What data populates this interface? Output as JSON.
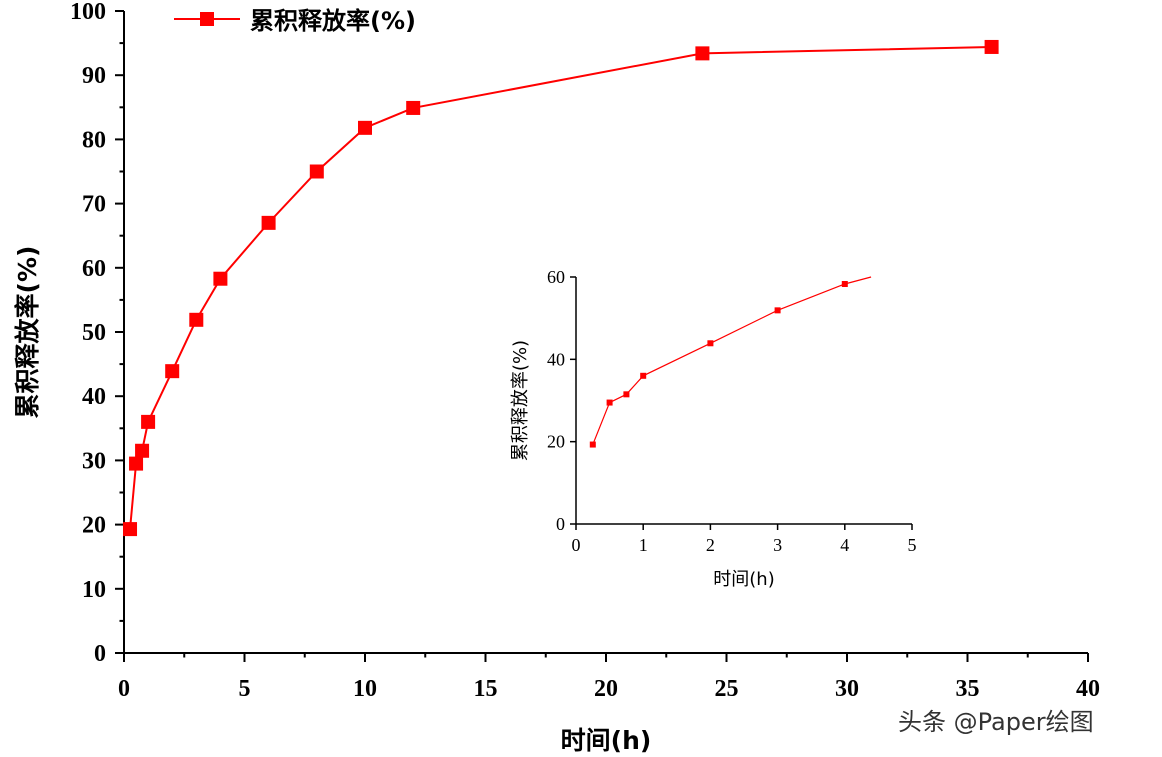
{
  "chart_data": [
    {
      "type": "line",
      "xlabel": "时间(h)",
      "ylabel": "累积释放率(%)",
      "xlim": [
        0,
        40
      ],
      "ylim": [
        0,
        100
      ],
      "x_ticks": [
        0,
        5,
        10,
        15,
        20,
        25,
        30,
        35,
        40
      ],
      "y_ticks": [
        0,
        10,
        20,
        30,
        40,
        50,
        60,
        70,
        80,
        90,
        100
      ],
      "grid": false,
      "legend_position": "top-left",
      "series": [
        {
          "name": "累积释放率(%)",
          "color": "#ff0000",
          "marker": "square",
          "x": [
            0.25,
            0.5,
            0.75,
            1,
            2,
            3,
            4,
            6,
            8,
            10,
            12,
            24,
            36
          ],
          "y": [
            19.3,
            29.5,
            31.5,
            36.0,
            43.9,
            51.9,
            58.3,
            67.0,
            75.0,
            81.8,
            84.9,
            93.4,
            94.4
          ]
        }
      ]
    },
    {
      "type": "line",
      "role": "inset",
      "xlabel": "时间(h)",
      "ylabel": "累积释放率(%)",
      "xlim": [
        0,
        5
      ],
      "ylim": [
        0,
        60
      ],
      "x_ticks": [
        0,
        1,
        2,
        3,
        4,
        5
      ],
      "y_ticks": [
        0,
        20,
        40,
        60
      ],
      "grid": false,
      "series": [
        {
          "color": "#ff0000",
          "marker": "square",
          "x": [
            0.25,
            0.5,
            0.75,
            1,
            2,
            3,
            4
          ],
          "y": [
            19.3,
            29.5,
            31.5,
            36.0,
            43.9,
            51.9,
            58.3
          ]
        }
      ]
    }
  ],
  "watermark": "头条 @Paper绘图"
}
